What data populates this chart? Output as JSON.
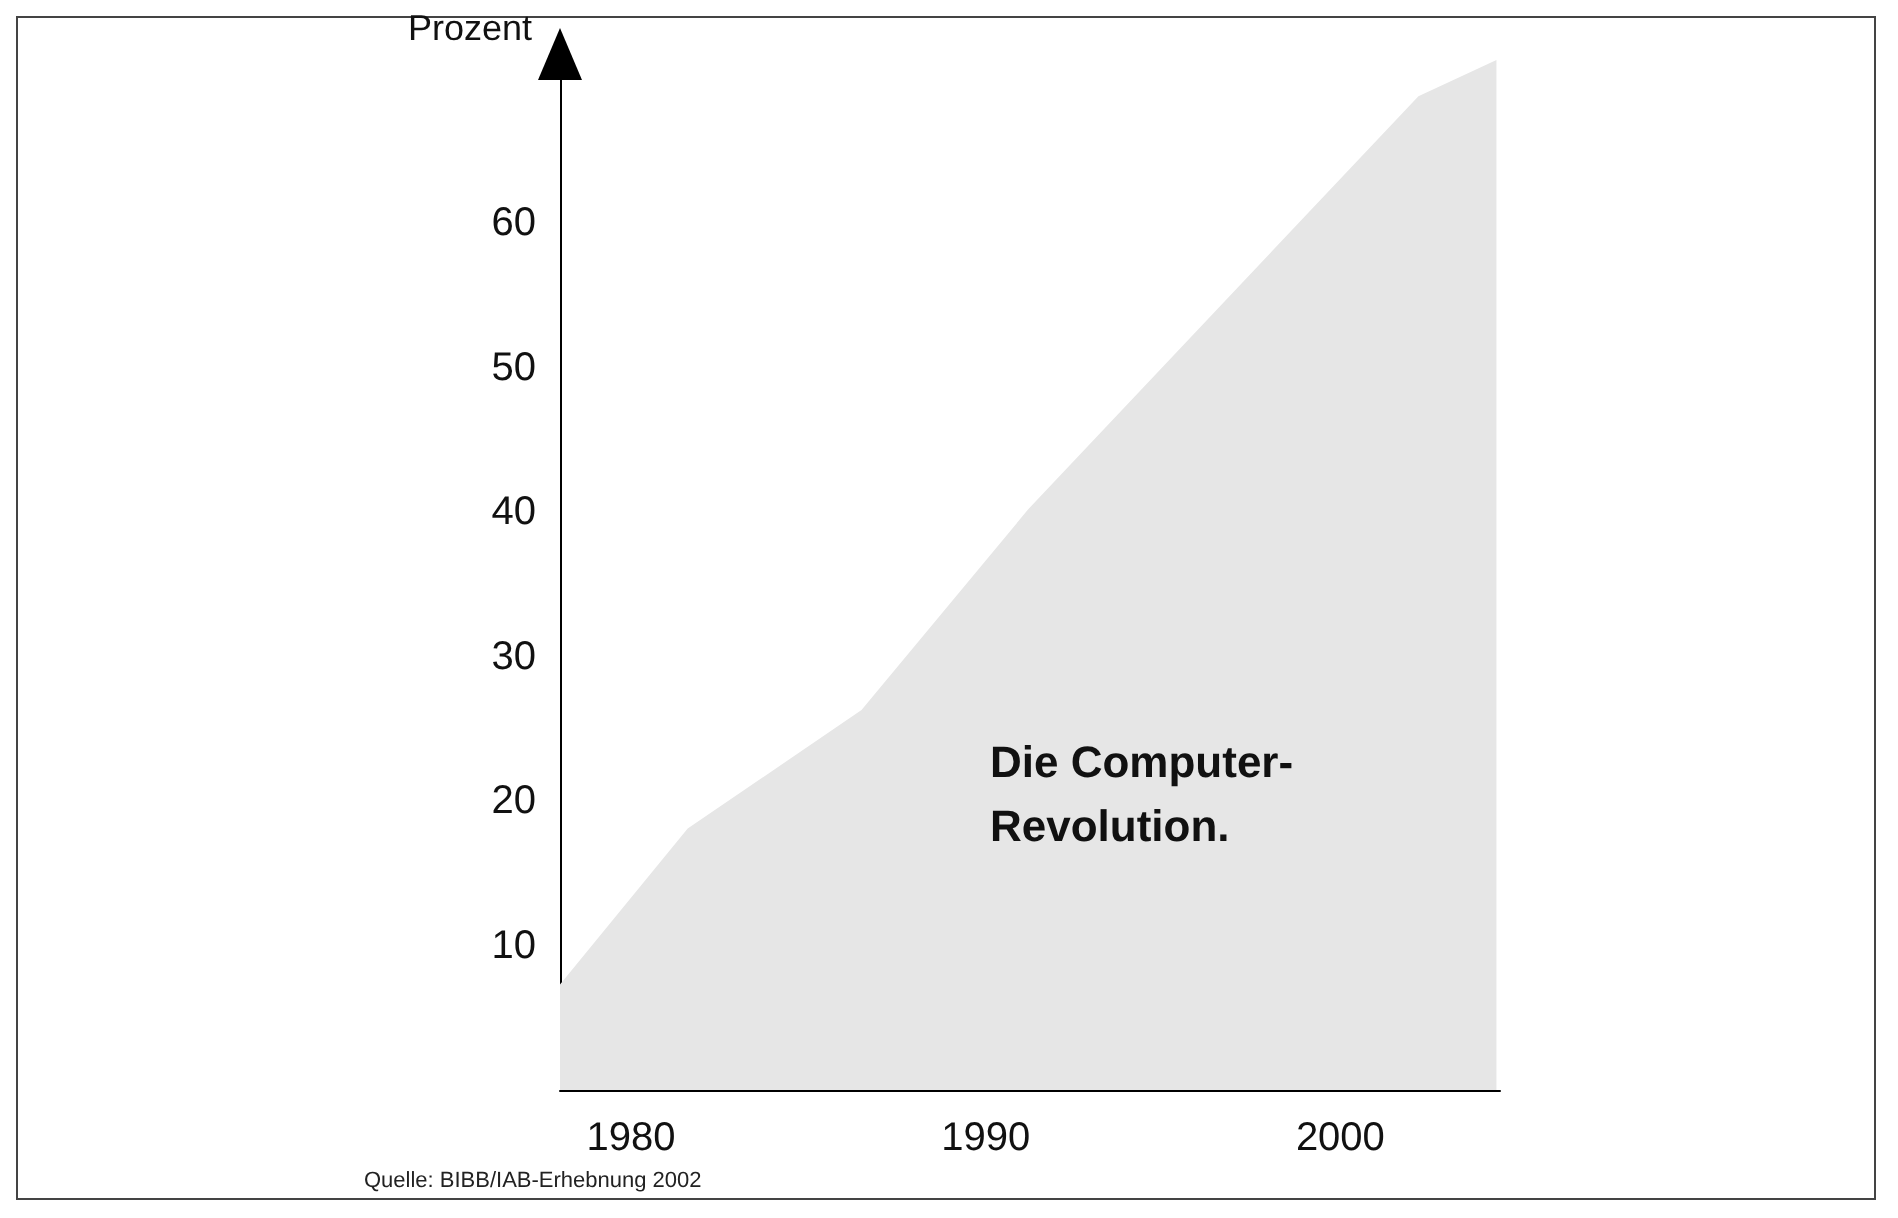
{
  "chart_data": {
    "type": "area",
    "ylabel": "Prozent",
    "x": [
      1978,
      1981.6,
      1986.5,
      1991.2,
      2002.2,
      2004.4
    ],
    "series": [
      {
        "color": "#e6e6e6",
        "values": [
          7.3,
          18.1,
          26.3,
          40.2,
          68.8,
          71.3
        ]
      }
    ],
    "xlim": [
      1978,
      2004.5
    ],
    "xticks": [
      1980,
      1990,
      2000
    ],
    "ylim": [
      0,
      72
    ],
    "yticks": [
      10,
      20,
      30,
      40,
      50,
      60
    ],
    "grid": false,
    "annotations": [
      "Die Computer-\nRevolution.",
      "Quelle: BIBB/IAB-Erhebnung 2002"
    ]
  }
}
